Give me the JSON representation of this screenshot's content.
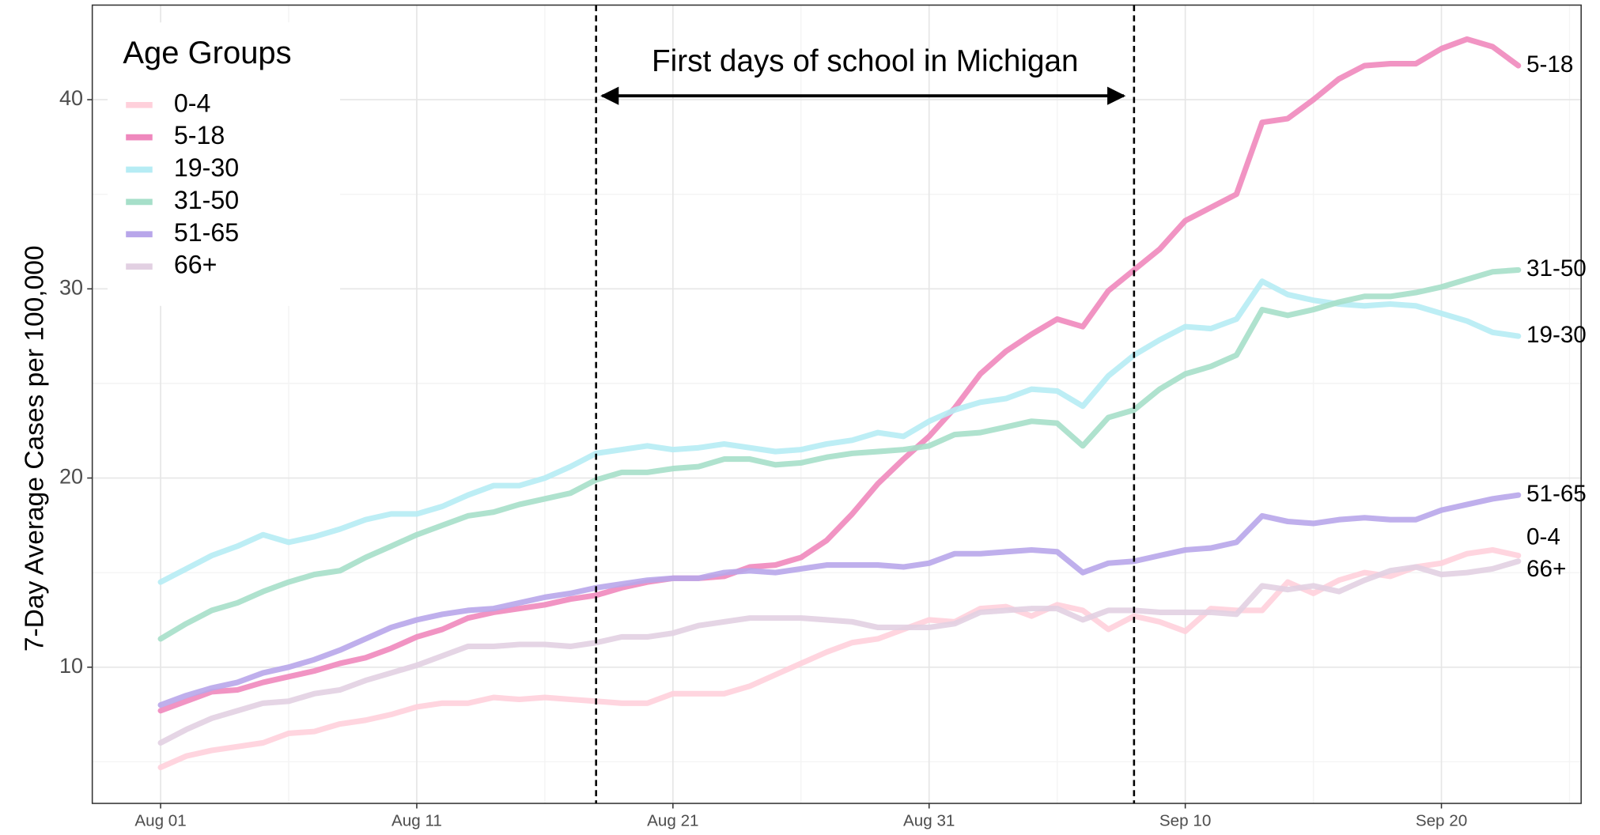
{
  "chart_data": {
    "type": "line",
    "y_label": "7-Day Average Cases per 100,000",
    "legend_title": "Age Groups",
    "legend": "top-left",
    "grid": true,
    "categories": [
      "Aug 01",
      "Aug 02",
      "Aug 03",
      "Aug 04",
      "Aug 05",
      "Aug 06",
      "Aug 07",
      "Aug 08",
      "Aug 09",
      "Aug 10",
      "Aug 11",
      "Aug 12",
      "Aug 13",
      "Aug 14",
      "Aug 15",
      "Aug 16",
      "Aug 17",
      "Aug 18",
      "Aug 19",
      "Aug 20",
      "Aug 21",
      "Aug 22",
      "Aug 23",
      "Aug 24",
      "Aug 25",
      "Aug 26",
      "Aug 27",
      "Aug 28",
      "Aug 29",
      "Aug 30",
      "Aug 31",
      "Sep 01",
      "Sep 02",
      "Sep 03",
      "Sep 04",
      "Sep 05",
      "Sep 06",
      "Sep 07",
      "Sep 08",
      "Sep 09",
      "Sep 10",
      "Sep 11",
      "Sep 12",
      "Sep 13",
      "Sep 14",
      "Sep 15",
      "Sep 16",
      "Sep 17",
      "Sep 18",
      "Sep 19",
      "Sep 20",
      "Sep 21",
      "Sep 22",
      "Sep 23"
    ],
    "xticks": [
      "Aug 01",
      "Aug 11",
      "Aug 21",
      "Aug 31",
      "Sep 10",
      "Sep 20"
    ],
    "ylim": [
      2.8,
      45
    ],
    "yticks": [
      10,
      20,
      30,
      40
    ],
    "annotation": {
      "text": "First days of school in Michigan",
      "x_start": "Aug 18",
      "x_end": "Sep 08"
    },
    "series": [
      {
        "name": "0-4",
        "color": "#ffd0db",
        "values": [
          4.7,
          5.3,
          5.6,
          5.8,
          6.0,
          6.5,
          6.6,
          7.0,
          7.2,
          7.5,
          7.9,
          8.1,
          8.1,
          8.4,
          8.3,
          8.4,
          8.3,
          8.2,
          8.1,
          8.1,
          8.6,
          8.6,
          8.6,
          9.0,
          9.6,
          10.2,
          10.8,
          11.3,
          11.5,
          12.0,
          12.5,
          12.4,
          13.1,
          13.2,
          12.7,
          13.3,
          13.0,
          12.0,
          12.7,
          12.4,
          11.9,
          13.1,
          13.0,
          13.0,
          14.5,
          13.9,
          14.6,
          15.0,
          14.8,
          15.3,
          15.5,
          16.0,
          16.2,
          15.9
        ]
      },
      {
        "name": "5-18",
        "color": "#ef88bd",
        "values": [
          7.7,
          8.2,
          8.7,
          8.8,
          9.2,
          9.5,
          9.8,
          10.2,
          10.5,
          11.0,
          11.6,
          12.0,
          12.6,
          12.9,
          13.1,
          13.3,
          13.6,
          13.8,
          14.2,
          14.5,
          14.7,
          14.7,
          14.8,
          15.3,
          15.4,
          15.8,
          16.7,
          18.1,
          19.7,
          21.0,
          22.2,
          23.7,
          25.5,
          26.7,
          27.6,
          28.4,
          28.0,
          29.9,
          31.0,
          32.1,
          33.6,
          34.3,
          35.0,
          38.8,
          39.0,
          40.0,
          41.1,
          41.8,
          41.9,
          41.9,
          42.7,
          43.2,
          42.8,
          41.8
        ]
      },
      {
        "name": "19-30",
        "color": "#b6ecf4",
        "values": [
          14.5,
          15.2,
          15.9,
          16.4,
          17.0,
          16.6,
          16.9,
          17.3,
          17.8,
          18.1,
          18.1,
          18.5,
          19.1,
          19.6,
          19.6,
          20.0,
          20.6,
          21.3,
          21.5,
          21.7,
          21.5,
          21.6,
          21.8,
          21.6,
          21.4,
          21.5,
          21.8,
          22.0,
          22.4,
          22.2,
          23.0,
          23.6,
          24.0,
          24.2,
          24.7,
          24.6,
          23.8,
          25.4,
          26.5,
          27.3,
          28.0,
          27.9,
          28.4,
          30.4,
          29.7,
          29.4,
          29.2,
          29.1,
          29.2,
          29.1,
          28.7,
          28.3,
          27.7,
          27.5
        ]
      },
      {
        "name": "31-50",
        "color": "#a6dfc9",
        "values": [
          11.5,
          12.3,
          13.0,
          13.4,
          14.0,
          14.5,
          14.9,
          15.1,
          15.8,
          16.4,
          17.0,
          17.5,
          18.0,
          18.2,
          18.6,
          18.9,
          19.2,
          19.9,
          20.3,
          20.3,
          20.5,
          20.6,
          21.0,
          21.0,
          20.7,
          20.8,
          21.1,
          21.3,
          21.4,
          21.5,
          21.7,
          22.3,
          22.4,
          22.7,
          23.0,
          22.9,
          21.7,
          23.2,
          23.6,
          24.7,
          25.5,
          25.9,
          26.5,
          28.9,
          28.6,
          28.9,
          29.3,
          29.6,
          29.6,
          29.8,
          30.1,
          30.5,
          30.9,
          31.0
        ]
      },
      {
        "name": "51-65",
        "color": "#b8a6ea",
        "values": [
          8.0,
          8.5,
          8.9,
          9.2,
          9.7,
          10.0,
          10.4,
          10.9,
          11.5,
          12.1,
          12.5,
          12.8,
          13.0,
          13.1,
          13.4,
          13.7,
          13.9,
          14.2,
          14.4,
          14.6,
          14.7,
          14.7,
          15.0,
          15.1,
          15.0,
          15.2,
          15.4,
          15.4,
          15.4,
          15.3,
          15.5,
          16.0,
          16.0,
          16.1,
          16.2,
          16.1,
          15.0,
          15.5,
          15.6,
          15.9,
          16.2,
          16.3,
          16.6,
          18.0,
          17.7,
          17.6,
          17.8,
          17.9,
          17.8,
          17.8,
          18.3,
          18.6,
          18.9,
          19.1
        ]
      },
      {
        "name": "66+",
        "color": "#e2d0e2",
        "values": [
          6.0,
          6.7,
          7.3,
          7.7,
          8.1,
          8.2,
          8.6,
          8.8,
          9.3,
          9.7,
          10.1,
          10.6,
          11.1,
          11.1,
          11.2,
          11.2,
          11.1,
          11.3,
          11.6,
          11.6,
          11.8,
          12.2,
          12.4,
          12.6,
          12.6,
          12.6,
          12.5,
          12.4,
          12.1,
          12.1,
          12.1,
          12.3,
          12.9,
          13.0,
          13.1,
          13.1,
          12.5,
          13.0,
          13.0,
          12.9,
          12.9,
          12.9,
          12.8,
          14.3,
          14.1,
          14.3,
          14.0,
          14.6,
          15.1,
          15.3,
          14.9,
          15.0,
          15.2,
          15.6
        ]
      }
    ]
  }
}
